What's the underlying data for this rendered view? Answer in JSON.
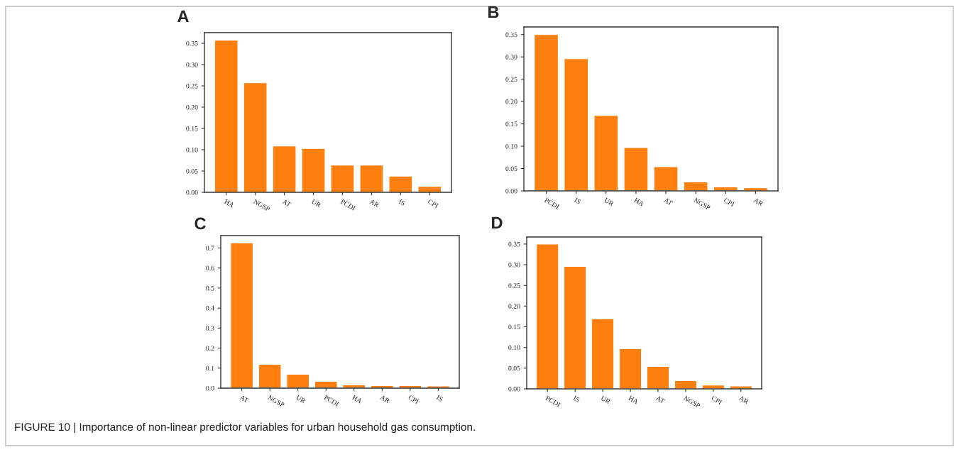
{
  "chart_data": [
    {
      "type": "bar",
      "title": "A",
      "categories": [
        "HA",
        "NGSP",
        "AT",
        "UR",
        "PCDI",
        "AR",
        "IS",
        "CPI"
      ],
      "values": [
        0.357,
        0.257,
        0.109,
        0.103,
        0.064,
        0.064,
        0.038,
        0.014
      ],
      "color": "#ff7f0e",
      "ylim": [
        0,
        0.375
      ],
      "yticks": [
        {
          "value": 0,
          "label": "0.00"
        },
        {
          "value": 0.05,
          "label": "0.05"
        },
        {
          "value": 0.1,
          "label": "0.10"
        },
        {
          "value": 0.15,
          "label": "0.15"
        },
        {
          "value": 0.2,
          "label": "0.20"
        },
        {
          "value": 0.25,
          "label": "0.25"
        },
        {
          "value": 0.3,
          "label": "0.30"
        },
        {
          "value": 0.35,
          "label": "0.35"
        }
      ],
      "grid": false,
      "annotations": [
        "FIGURE 10 | Importance of non-linear predictor variables for urban household gas consumption."
      ]
    },
    {
      "type": "bar",
      "title": "B",
      "categories": [
        "PCDI",
        "IS",
        "UR",
        "HA",
        "AT",
        "NGSP",
        "CPI",
        "AR"
      ],
      "values": [
        0.35,
        0.296,
        0.169,
        0.097,
        0.054,
        0.02,
        0.009,
        0.007
      ],
      "color": "#ff7f0e",
      "ylim": [
        0,
        0.367
      ],
      "yticks": [
        {
          "value": 0,
          "label": "0.00"
        },
        {
          "value": 0.05,
          "label": "0.05"
        },
        {
          "value": 0.1,
          "label": "0.10"
        },
        {
          "value": 0.15,
          "label": "0.15"
        },
        {
          "value": 0.2,
          "label": "0.20"
        },
        {
          "value": 0.25,
          "label": "0.25"
        },
        {
          "value": 0.3,
          "label": "0.30"
        },
        {
          "value": 0.35,
          "label": "0.35"
        }
      ],
      "grid": false
    },
    {
      "type": "bar",
      "title": "C",
      "categories": [
        "AT",
        "NGSP",
        "UR",
        "PCDI",
        "HA",
        "AR",
        "CPI",
        "IS"
      ],
      "values": [
        0.726,
        0.119,
        0.069,
        0.034,
        0.016,
        0.013,
        0.013,
        0.011
      ],
      "color": "#ff7f0e",
      "ylim": [
        0,
        0.762
      ],
      "yticks": [
        {
          "value": 0,
          "label": "0.0"
        },
        0.1,
        0.2,
        0.3,
        0.4,
        0.5,
        0.6,
        0.7
      ],
      "grid": false
    },
    {
      "type": "bar",
      "title": "D",
      "categories": [
        "PCDI",
        "IS",
        "UR",
        "HA",
        "AT",
        "NGSP",
        "CPI",
        "AR"
      ],
      "values": [
        0.35,
        0.296,
        0.169,
        0.097,
        0.054,
        0.02,
        0.009,
        0.007
      ],
      "color": "#ff7f0e",
      "ylim": [
        0,
        0.367
      ],
      "yticks": [
        {
          "value": 0,
          "label": "0.00"
        },
        {
          "value": 0.05,
          "label": "0.05"
        },
        {
          "value": 0.1,
          "label": "0.10"
        },
        {
          "value": 0.15,
          "label": "0.15"
        },
        {
          "value": 0.2,
          "label": "0.20"
        },
        {
          "value": 0.25,
          "label": "0.25"
        },
        {
          "value": 0.3,
          "label": "0.30"
        },
        {
          "value": 0.35,
          "label": "0.35"
        }
      ],
      "grid": false
    }
  ]
}
